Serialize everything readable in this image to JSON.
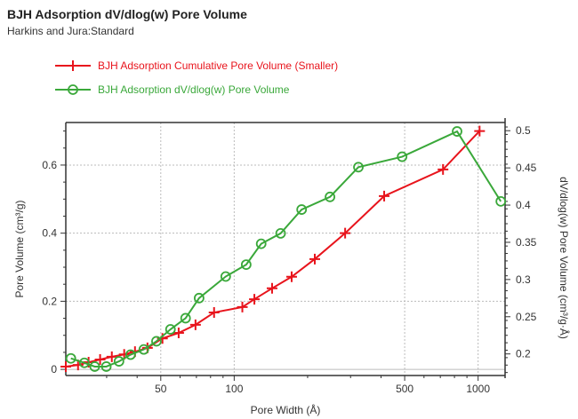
{
  "header": {
    "title": "BJH Adsorption dV/dlog(w) Pore Volume",
    "subtitle": "Harkins and Jura:Standard"
  },
  "chart_data": {
    "type": "line",
    "title": "BJH Adsorption dV/dlog(w) Pore Volume",
    "xlabel": "Pore Width (Å)",
    "ylabel": "Pore Volume (cm³/g)",
    "y2label": "dV/dlog(w) Pore Volume (cm³/g·Å)",
    "xscale": "log",
    "xlim": [
      20.4,
      1290
    ],
    "ylim": [
      -0.018,
      0.725
    ],
    "y2lim": [
      0.171,
      0.511
    ],
    "xticks": [
      50,
      100,
      500,
      1000
    ],
    "yticks": [
      0,
      0.2,
      0.4,
      0.6
    ],
    "y2ticks": [
      0.2,
      0.25,
      0.3,
      0.35,
      0.4,
      0.45,
      0.5
    ],
    "grid": true,
    "legend_position": "top",
    "series": [
      {
        "name": "BJH Adsorption Cumulative Pore Volume (Smaller)",
        "axis": "left",
        "color": "#e8141c",
        "marker": "plus",
        "x": [
          20.4,
          22.9,
          25.3,
          28.2,
          31.5,
          35.4,
          39.2,
          44.1,
          50.8,
          59.2,
          69.4,
          82.7,
          108,
          121,
          143,
          172,
          214,
          285,
          412,
          718,
          1014
        ],
        "y": [
          0.008,
          0.013,
          0.021,
          0.029,
          0.037,
          0.044,
          0.052,
          0.063,
          0.091,
          0.107,
          0.131,
          0.167,
          0.183,
          0.206,
          0.238,
          0.272,
          0.324,
          0.4,
          0.509,
          0.587,
          0.7
        ]
      },
      {
        "name": "BJH Adsorption dV/dlog(w) Pore Volume",
        "axis": "right",
        "color": "#3aa83a",
        "marker": "circle",
        "x": [
          21.4,
          24.3,
          26.8,
          29.9,
          33.7,
          37.6,
          42.6,
          48.0,
          54.8,
          63.2,
          71.8,
          92.3,
          112,
          129,
          155,
          189,
          247,
          323,
          488,
          820,
          1239
        ],
        "y": [
          0.194,
          0.188,
          0.183,
          0.183,
          0.19,
          0.199,
          0.206,
          0.217,
          0.233,
          0.248,
          0.275,
          0.304,
          0.32,
          0.348,
          0.362,
          0.394,
          0.411,
          0.451,
          0.465,
          0.499,
          0.405
        ]
      }
    ]
  }
}
